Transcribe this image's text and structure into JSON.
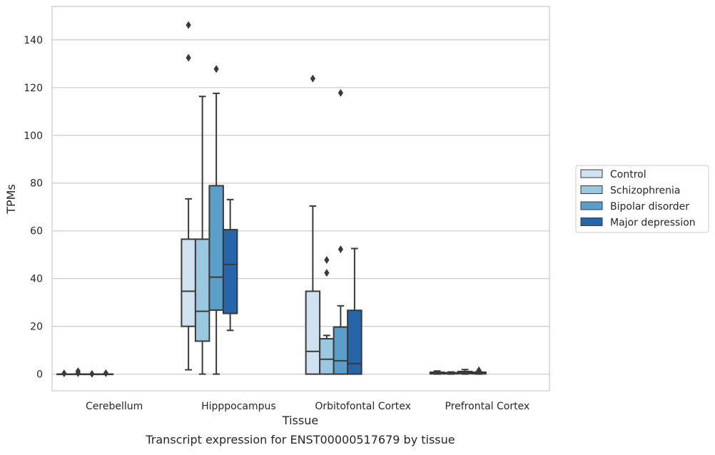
{
  "caption": "Transcript expression for ENST00000517679 by tissue",
  "colors": {
    "Control": "#d0e2f2",
    "Schizophrenia": "#9ac8e0",
    "Bipolar disorder": "#5a9ec9",
    "Major depression": "#2565a8",
    "outline": "#3a3a3a",
    "grid": "#cccccc",
    "frame": "#cccccc"
  },
  "chart_data": {
    "type": "box",
    "xlabel": "Tissue",
    "ylabel": "TPMs",
    "ylim": [
      -7,
      154
    ],
    "yticks": [
      0,
      20,
      40,
      60,
      80,
      100,
      120,
      140
    ],
    "grid": true,
    "legend_position": "right",
    "categories": [
      "Cerebellum",
      "Hipppocampus",
      "Orbitofontal Cortex",
      "Prefrontal Cortex"
    ],
    "series": [
      {
        "name": "Control",
        "boxes": [
          {
            "whisker_low": 0,
            "q1": 0,
            "median": 0,
            "q3": 0,
            "whisker_high": 0,
            "outliers": [
              0.3
            ]
          },
          {
            "whisker_low": 1.8,
            "q1": 20,
            "median": 34.7,
            "q3": 56.5,
            "whisker_high": 73.4,
            "outliers": [
              132.5,
              146.2
            ]
          },
          {
            "whisker_low": 0,
            "q1": 0,
            "median": 9.5,
            "q3": 34.7,
            "whisker_high": 70.4,
            "outliers": [
              123.8
            ]
          },
          {
            "whisker_low": 0,
            "q1": 0.1,
            "median": 0.5,
            "q3": 0.8,
            "whisker_high": 1.3,
            "outliers": []
          }
        ]
      },
      {
        "name": "Schizophrenia",
        "boxes": [
          {
            "whisker_low": 0,
            "q1": 0,
            "median": 0,
            "q3": 0,
            "whisker_high": 0,
            "outliers": [
              0.4,
              1.2
            ]
          },
          {
            "whisker_low": 0,
            "q1": 13.8,
            "median": 26.3,
            "q3": 56.5,
            "whisker_high": 116.3,
            "outliers": []
          },
          {
            "whisker_low": 0,
            "q1": 0,
            "median": 6.2,
            "q3": 14.8,
            "whisker_high": 16.2,
            "outliers": [
              42.4,
              47.8
            ]
          },
          {
            "whisker_low": 0,
            "q1": 0.1,
            "median": 0.3,
            "q3": 0.6,
            "whisker_high": 0.9,
            "outliers": []
          }
        ]
      },
      {
        "name": "Bipolar disorder",
        "boxes": [
          {
            "whisker_low": 0,
            "q1": 0,
            "median": 0,
            "q3": 0,
            "whisker_high": 0,
            "outliers": [
              0.1
            ]
          },
          {
            "whisker_low": 0,
            "q1": 26.8,
            "median": 40.6,
            "q3": 78.9,
            "whisker_high": 117.6,
            "outliers": [
              127.8
            ]
          },
          {
            "whisker_low": 0,
            "q1": 0,
            "median": 5.6,
            "q3": 19.7,
            "whisker_high": 28.6,
            "outliers": [
              117.8,
              52.3
            ]
          },
          {
            "whisker_low": 0,
            "q1": 0.2,
            "median": 0.6,
            "q3": 1.1,
            "whisker_high": 1.9,
            "outliers": []
          }
        ]
      },
      {
        "name": "Major depression",
        "boxes": [
          {
            "whisker_low": 0,
            "q1": 0,
            "median": 0,
            "q3": 0,
            "whisker_high": 0,
            "outliers": [
              0.4
            ]
          },
          {
            "whisker_low": 18.3,
            "q1": 25.4,
            "median": 45.9,
            "q3": 60.5,
            "whisker_high": 73.1,
            "outliers": []
          },
          {
            "whisker_low": 0,
            "q1": 0,
            "median": 4.4,
            "q3": 26.7,
            "whisker_high": 52.6,
            "outliers": []
          },
          {
            "whisker_low": 0,
            "q1": 0.1,
            "median": 0.4,
            "q3": 0.8,
            "whisker_high": 1.0,
            "outliers": [
              1.6
            ]
          }
        ]
      }
    ]
  }
}
